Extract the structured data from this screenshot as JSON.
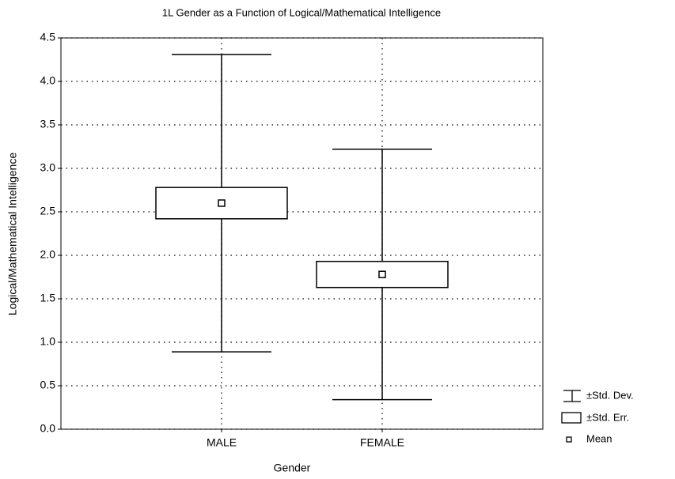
{
  "chart_data": {
    "type": "box",
    "title": "1L Gender as a Function of Logical/Mathematical Intelligence",
    "x_label": "Gender",
    "y_label": "Logical/Mathematical Intelligence",
    "categories": [
      "MALE",
      "FEMALE"
    ],
    "mean": [
      2.6,
      1.78
    ],
    "std_err": [
      0.18,
      0.15
    ],
    "std_dev": [
      1.71,
      1.44
    ],
    "legend": [
      "±Std. Dev.",
      "±Std. Err.",
      "Mean"
    ],
    "color": "#000000",
    "ylim": [
      0,
      4.5
    ],
    "yticks": [
      {
        "value": 0,
        "label": "0.0"
      },
      0.5,
      {
        "value": 1,
        "label": "1.0"
      },
      1.5,
      {
        "value": 2,
        "label": "2.0"
      },
      2.5,
      {
        "value": 3,
        "label": "3.0"
      },
      3.5,
      {
        "value": 4,
        "label": "4.0"
      },
      4.5
    ],
    "grid": true
  }
}
